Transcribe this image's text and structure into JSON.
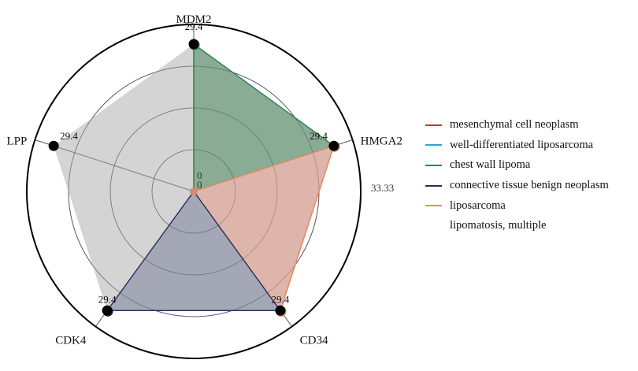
{
  "chart_data": {
    "type": "radar",
    "axes": [
      "MDM2",
      "HMGA2",
      "CD34",
      "CDK4",
      "LPP"
    ],
    "rmax": 33.33,
    "ring_count": 4,
    "ring_labels": [
      "33.33"
    ],
    "grid": true,
    "legend_position": "right",
    "series": [
      {
        "name": "mesenchymal cell neoplasm",
        "color": "#c0392b",
        "fill": "#d9a08c",
        "fill_opacity": 0.0,
        "values": [
          29.4,
          29.4,
          29.4,
          0,
          0
        ]
      },
      {
        "name": "well-differentiated liposarcoma",
        "color": "#2aa7d6",
        "fill": "#7fb8d0",
        "fill_opacity": 0.0,
        "values": [
          29.4,
          0,
          0,
          29.4,
          0
        ]
      },
      {
        "name": "chest wall lipoma",
        "color": "#1e8a5a",
        "fill": "#4e8a5e",
        "fill_opacity": 0.55,
        "values": [
          29.4,
          29.4,
          0,
          0,
          0
        ]
      },
      {
        "name": "connective tissue benign neoplasm",
        "color": "#2a2a5a",
        "fill": "#6a7090",
        "fill_opacity": 0.45,
        "values": [
          0,
          0,
          29.4,
          29.4,
          0
        ]
      },
      {
        "name": "liposarcoma",
        "color": "#f08a5d",
        "fill": "#e49a86",
        "fill_opacity": 0.55,
        "values": [
          0,
          29.4,
          29.4,
          0,
          0
        ]
      },
      {
        "name": "lipomatosis, multiple",
        "color": "#000000",
        "fill": "#aaaaaa",
        "fill_opacity": 0.5,
        "values": [
          29.4,
          29.4,
          29.4,
          29.4,
          29.4
        ]
      }
    ],
    "value_labels": [
      {
        "axis": "MDM2",
        "text": "29.4"
      },
      {
        "axis": "HMGA2",
        "text": "29.4"
      },
      {
        "axis": "CD34",
        "text": "29.4"
      },
      {
        "axis": "CDK4",
        "text": "29.4"
      },
      {
        "axis": "LPP",
        "text": "29.4"
      }
    ],
    "center_labels": [
      "0",
      "0"
    ]
  }
}
